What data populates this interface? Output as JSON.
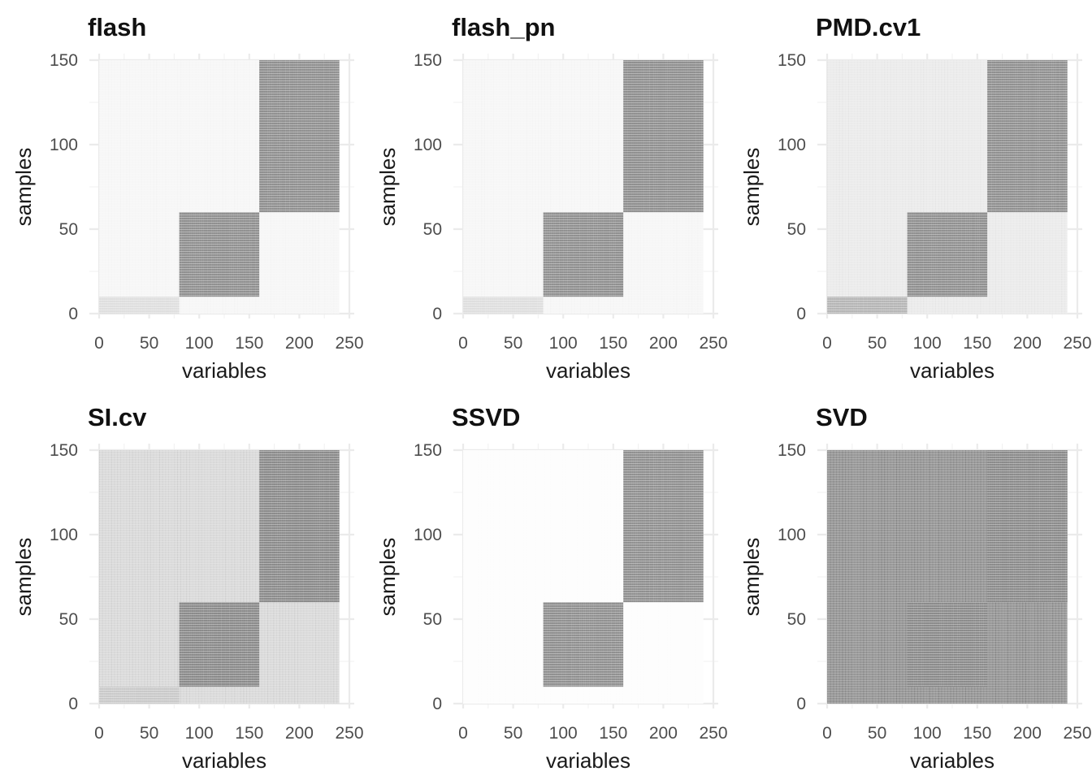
{
  "chart_data": [
    {
      "type": "heatmap",
      "title": "flash",
      "xlabel": "variables",
      "ylabel": "samples",
      "xlim": [
        0,
        250
      ],
      "ylim": [
        0,
        150
      ],
      "xticks": [
        0,
        50,
        100,
        150,
        200,
        250
      ],
      "yticks": [
        0,
        50,
        100,
        150
      ],
      "grid": true,
      "colors": {
        "background": "#f7f7f7",
        "block": "#8f8f8f",
        "faint_block": "#dedede"
      },
      "blocks": [
        {
          "x": [
            0,
            80
          ],
          "y": [
            0,
            10
          ],
          "intensity": 0.2
        },
        {
          "x": [
            80,
            160
          ],
          "y": [
            10,
            60
          ],
          "intensity": 0.72
        },
        {
          "x": [
            160,
            240
          ],
          "y": [
            60,
            150
          ],
          "intensity": 0.72
        }
      ],
      "background_intensity": 0.06
    },
    {
      "type": "heatmap",
      "title": "flash_pn",
      "xlabel": "variables",
      "ylabel": "samples",
      "xlim": [
        0,
        250
      ],
      "ylim": [
        0,
        150
      ],
      "xticks": [
        0,
        50,
        100,
        150,
        200,
        250
      ],
      "yticks": [
        0,
        50,
        100,
        150
      ],
      "grid": true,
      "colors": {
        "background": "#f7f7f7",
        "block": "#8f8f8f",
        "faint_block": "#dedede"
      },
      "blocks": [
        {
          "x": [
            0,
            80
          ],
          "y": [
            0,
            10
          ],
          "intensity": 0.2
        },
        {
          "x": [
            80,
            160
          ],
          "y": [
            10,
            60
          ],
          "intensity": 0.72
        },
        {
          "x": [
            160,
            240
          ],
          "y": [
            60,
            150
          ],
          "intensity": 0.72
        }
      ],
      "background_intensity": 0.06
    },
    {
      "type": "heatmap",
      "title": "PMD.cv1",
      "xlabel": "variables",
      "ylabel": "samples",
      "xlim": [
        0,
        250
      ],
      "ylim": [
        0,
        150
      ],
      "xticks": [
        0,
        50,
        100,
        150,
        200,
        250
      ],
      "yticks": [
        0,
        50,
        100,
        150
      ],
      "grid": true,
      "colors": {
        "background": "#ececec",
        "block": "#8f8f8f",
        "faint_block": "#b5b5b5"
      },
      "blocks": [
        {
          "x": [
            0,
            80
          ],
          "y": [
            0,
            10
          ],
          "intensity": 0.5
        },
        {
          "x": [
            80,
            160
          ],
          "y": [
            10,
            60
          ],
          "intensity": 0.72
        },
        {
          "x": [
            160,
            240
          ],
          "y": [
            60,
            150
          ],
          "intensity": 0.72
        }
      ],
      "background_intensity": 0.12
    },
    {
      "type": "heatmap",
      "title": "SI.cv",
      "xlabel": "variables",
      "ylabel": "samples",
      "xlim": [
        0,
        250
      ],
      "ylim": [
        0,
        150
      ],
      "xticks": [
        0,
        50,
        100,
        150,
        200,
        250
      ],
      "yticks": [
        0,
        50,
        100,
        150
      ],
      "grid": true,
      "colors": {
        "background": "#dcdcdc",
        "block": "#8a8a8a",
        "faint_block": "#c9c9c9"
      },
      "blocks": [
        {
          "x": [
            0,
            80
          ],
          "y": [
            0,
            10
          ],
          "intensity": 0.25
        },
        {
          "x": [
            80,
            160
          ],
          "y": [
            10,
            60
          ],
          "intensity": 0.7
        },
        {
          "x": [
            160,
            240
          ],
          "y": [
            60,
            150
          ],
          "intensity": 0.72
        }
      ],
      "background_intensity": 0.22
    },
    {
      "type": "heatmap",
      "title": "SSVD",
      "xlabel": "variables",
      "ylabel": "samples",
      "xlim": [
        0,
        250
      ],
      "ylim": [
        0,
        150
      ],
      "xticks": [
        0,
        50,
        100,
        150,
        200,
        250
      ],
      "yticks": [
        0,
        50,
        100,
        150
      ],
      "grid": true,
      "colors": {
        "background": "#fdfdfd",
        "block": "#8f8f8f",
        "faint_block": "#fafafa"
      },
      "blocks": [
        {
          "x": [
            80,
            160
          ],
          "y": [
            10,
            60
          ],
          "intensity": 0.6
        },
        {
          "x": [
            160,
            240
          ],
          "y": [
            60,
            150
          ],
          "intensity": 0.72
        }
      ],
      "background_intensity": 0.01
    },
    {
      "type": "heatmap",
      "title": "SVD",
      "xlabel": "variables",
      "ylabel": "samples",
      "xlim": [
        0,
        250
      ],
      "ylim": [
        0,
        150
      ],
      "xticks": [
        0,
        50,
        100,
        150,
        200,
        250
      ],
      "yticks": [
        0,
        50,
        100,
        150
      ],
      "grid": true,
      "colors": {
        "background": "#9c9c9c",
        "block": "#8a8a8a",
        "faint_block": "#9c9c9c"
      },
      "blocks": [
        {
          "x": [
            80,
            160
          ],
          "y": [
            10,
            60
          ],
          "intensity": 0.68
        },
        {
          "x": [
            160,
            240
          ],
          "y": [
            60,
            150
          ],
          "intensity": 0.7
        }
      ],
      "background_intensity": 0.62
    }
  ]
}
